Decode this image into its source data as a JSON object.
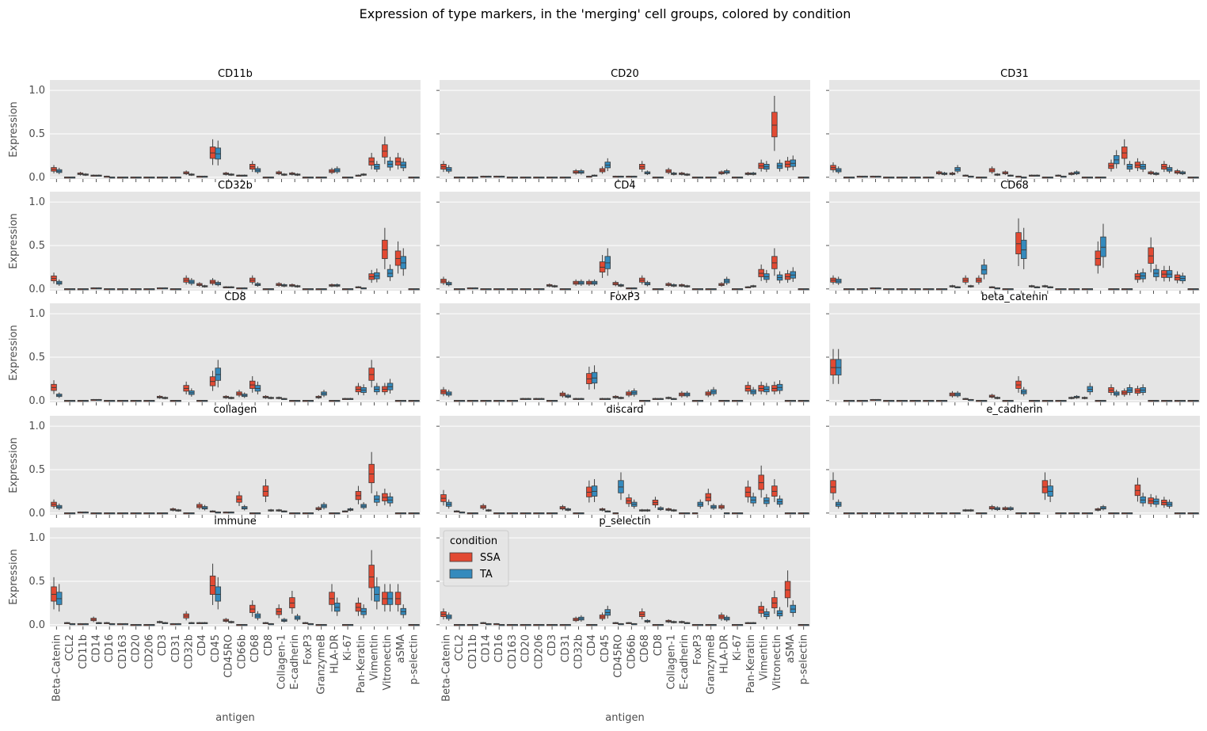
{
  "chart_data": {
    "type": "box",
    "title": "Expression of type markers, in the 'merging' cell groups, colored by condition",
    "xlabel": "antigen",
    "ylabel": "Expression",
    "ylim": [
      -0.02,
      1.12
    ],
    "yticks": [
      "0.0",
      "0.5",
      "1.0"
    ],
    "ytick_values": [
      0,
      0.5,
      1.0
    ],
    "grid": true,
    "categories": [
      "Beta-Catenin",
      "CCL2",
      "CD11b",
      "CD14",
      "CD16",
      "CD163",
      "CD20",
      "CD206",
      "CD3",
      "CD31",
      "CD32b",
      "CD4",
      "CD45",
      "CD45RO",
      "CD66b",
      "CD68",
      "CD8",
      "Collagen-1",
      "E-cadherin",
      "FoxP3",
      "GranzymeB",
      "HLA-DR",
      "Ki-67",
      "Pan-Keratin",
      "Vimentin",
      "Vitronectin",
      "aSMA",
      "p-selectin"
    ],
    "legend": {
      "title": "condition",
      "placement": "upper-left",
      "entries": [
        {
          "name": "SSA",
          "color": "#e24a33"
        },
        {
          "name": "TA",
          "color": "#348abd"
        }
      ]
    },
    "series_colors": {
      "SSA": "#e24a33",
      "TA": "#348abd"
    },
    "panels": [
      {
        "title": "CD11b",
        "medians": {
          "SSA": [
            0.09,
            0.0,
            0.04,
            0.02,
            0.01,
            0.0,
            0.0,
            0.0,
            0.0,
            0.0,
            0.05,
            0.01,
            0.28,
            0.04,
            0.02,
            0.12,
            0.0,
            0.05,
            0.04,
            0.0,
            0.0,
            0.07,
            0.0,
            0.02,
            0.18,
            0.3,
            0.18,
            0.0
          ],
          "TA": [
            0.07,
            0.0,
            0.03,
            0.02,
            0.0,
            0.0,
            0.0,
            0.0,
            0.0,
            0.0,
            0.03,
            0.01,
            0.27,
            0.03,
            0.02,
            0.08,
            0.0,
            0.03,
            0.03,
            0.0,
            0.0,
            0.08,
            0.0,
            0.03,
            0.12,
            0.15,
            0.14,
            0.0
          ]
        }
      },
      {
        "title": "CD20",
        "medians": {
          "SSA": [
            0.12,
            0.0,
            0.0,
            0.01,
            0.01,
            0.0,
            0.0,
            0.0,
            0.0,
            0.0,
            0.06,
            0.01,
            0.08,
            0.01,
            0.01,
            0.12,
            0.0,
            0.07,
            0.04,
            0.0,
            0.0,
            0.05,
            0.0,
            0.04,
            0.13,
            0.6,
            0.15,
            0.0
          ],
          "TA": [
            0.09,
            0.0,
            0.0,
            0.01,
            0.01,
            0.0,
            0.0,
            0.0,
            0.0,
            0.0,
            0.06,
            0.02,
            0.14,
            0.01,
            0.01,
            0.05,
            0.0,
            0.04,
            0.03,
            0.0,
            0.0,
            0.06,
            0.0,
            0.04,
            0.12,
            0.13,
            0.16,
            0.0
          ]
        }
      },
      {
        "title": "CD31",
        "medians": {
          "SSA": [
            0.11,
            0.0,
            0.01,
            0.01,
            0.0,
            0.0,
            0.0,
            0.0,
            0.05,
            0.04,
            0.02,
            0.0,
            0.08,
            0.05,
            0.01,
            0.02,
            0.0,
            0.02,
            0.04,
            0.0,
            0.0,
            0.13,
            0.28,
            0.14,
            0.05,
            0.12,
            0.06,
            0.0
          ],
          "TA": [
            0.08,
            0.0,
            0.01,
            0.01,
            0.0,
            0.0,
            0.0,
            0.0,
            0.04,
            0.09,
            0.01,
            0.0,
            0.03,
            0.02,
            0.0,
            0.02,
            0.0,
            0.01,
            0.05,
            0.0,
            0.0,
            0.2,
            0.12,
            0.12,
            0.04,
            0.09,
            0.05,
            0.0
          ]
        }
      },
      {
        "title": "CD32b",
        "medians": {
          "SSA": [
            0.12,
            0.0,
            0.0,
            0.01,
            0.0,
            0.0,
            0.0,
            0.0,
            0.01,
            0.0,
            0.1,
            0.05,
            0.08,
            0.02,
            0.01,
            0.1,
            0.0,
            0.05,
            0.04,
            0.0,
            0.0,
            0.04,
            0.0,
            0.02,
            0.14,
            0.45,
            0.35,
            0.0
          ],
          "TA": [
            0.07,
            0.0,
            0.0,
            0.01,
            0.0,
            0.0,
            0.0,
            0.0,
            0.01,
            0.0,
            0.08,
            0.03,
            0.06,
            0.02,
            0.01,
            0.05,
            0.0,
            0.04,
            0.03,
            0.0,
            0.0,
            0.04,
            0.0,
            0.01,
            0.15,
            0.18,
            0.3,
            0.0
          ]
        }
      },
      {
        "title": "CD4",
        "medians": {
          "SSA": [
            0.09,
            0.0,
            0.01,
            0.0,
            0.0,
            0.0,
            0.0,
            0.0,
            0.04,
            0.0,
            0.07,
            0.07,
            0.25,
            0.06,
            0.01,
            0.1,
            0.0,
            0.05,
            0.04,
            0.0,
            0.0,
            0.05,
            0.0,
            0.02,
            0.18,
            0.3,
            0.14,
            0.0
          ],
          "TA": [
            0.06,
            0.0,
            0.01,
            0.0,
            0.0,
            0.0,
            0.0,
            0.0,
            0.03,
            0.0,
            0.07,
            0.07,
            0.3,
            0.04,
            0.01,
            0.06,
            0.0,
            0.04,
            0.03,
            0.0,
            0.0,
            0.09,
            0.0,
            0.03,
            0.14,
            0.13,
            0.16,
            0.0
          ]
        }
      },
      {
        "title": "CD68",
        "medians": {
          "SSA": [
            0.1,
            0.0,
            0.0,
            0.01,
            0.0,
            0.0,
            0.0,
            0.0,
            0.0,
            0.03,
            0.1,
            0.1,
            0.02,
            0.0,
            0.52,
            0.03,
            0.03,
            0.0,
            0.0,
            0.0,
            0.35,
            0.0,
            0.0,
            0.14,
            0.38,
            0.17,
            0.13,
            0.0
          ],
          "TA": [
            0.09,
            0.0,
            0.0,
            0.01,
            0.0,
            0.0,
            0.0,
            0.0,
            0.0,
            0.02,
            0.03,
            0.22,
            0.01,
            0.0,
            0.45,
            0.02,
            0.02,
            0.0,
            0.0,
            0.0,
            0.48,
            0.0,
            0.0,
            0.15,
            0.18,
            0.17,
            0.12,
            0.0
          ]
        }
      },
      {
        "title": "CD8",
        "medians": {
          "SSA": [
            0.15,
            0.0,
            0.0,
            0.01,
            0.0,
            0.0,
            0.0,
            0.0,
            0.04,
            0.0,
            0.14,
            0.0,
            0.22,
            0.04,
            0.08,
            0.18,
            0.04,
            0.03,
            0.0,
            0.0,
            0.04,
            0.0,
            0.02,
            0.13,
            0.3,
            0.13,
            0.0,
            0.0
          ],
          "TA": [
            0.06,
            0.0,
            0.0,
            0.01,
            0.0,
            0.0,
            0.0,
            0.0,
            0.03,
            0.0,
            0.09,
            0.0,
            0.3,
            0.03,
            0.06,
            0.14,
            0.03,
            0.02,
            0.0,
            0.0,
            0.08,
            0.0,
            0.02,
            0.12,
            0.13,
            0.16,
            0.0,
            0.0
          ]
        }
      },
      {
        "title": "FoxP3",
        "medians": {
          "SSA": [
            0.1,
            0.0,
            0.0,
            0.0,
            0.0,
            0.0,
            0.02,
            0.02,
            0.0,
            0.07,
            0.02,
            0.25,
            0.02,
            0.04,
            0.08,
            0.0,
            0.02,
            0.03,
            0.07,
            0.0,
            0.08,
            0.0,
            0.0,
            0.14,
            0.14,
            0.14,
            0.0,
            0.0
          ],
          "TA": [
            0.08,
            0.0,
            0.0,
            0.0,
            0.0,
            0.0,
            0.02,
            0.02,
            0.0,
            0.05,
            0.02,
            0.26,
            0.02,
            0.03,
            0.09,
            0.0,
            0.02,
            0.02,
            0.07,
            0.0,
            0.1,
            0.0,
            0.0,
            0.1,
            0.13,
            0.15,
            0.0,
            0.0
          ]
        }
      },
      {
        "title": "beta_catenin",
        "medians": {
          "SSA": [
            0.38,
            0.0,
            0.0,
            0.01,
            0.0,
            0.0,
            0.0,
            0.0,
            0.0,
            0.07,
            0.02,
            0.0,
            0.05,
            0.0,
            0.18,
            0.0,
            0.0,
            0.0,
            0.03,
            0.03,
            0.0,
            0.12,
            0.09,
            0.11,
            0.0,
            0.0,
            0.0,
            0.0
          ],
          "TA": [
            0.38,
            0.0,
            0.0,
            0.01,
            0.0,
            0.0,
            0.0,
            0.0,
            0.0,
            0.07,
            0.01,
            0.0,
            0.03,
            0.0,
            0.1,
            0.0,
            0.0,
            0.0,
            0.04,
            0.13,
            0.0,
            0.08,
            0.12,
            0.12,
            0.0,
            0.0,
            0.0,
            0.0
          ]
        }
      },
      {
        "title": "collagen",
        "medians": {
          "SSA": [
            0.1,
            0.0,
            0.01,
            0.0,
            0.0,
            0.0,
            0.0,
            0.0,
            0.0,
            0.04,
            0.0,
            0.08,
            0.02,
            0.01,
            0.16,
            0.0,
            0.25,
            0.03,
            0.0,
            0.0,
            0.05,
            0.0,
            0.02,
            0.2,
            0.45,
            0.18,
            0.0,
            0.0
          ],
          "TA": [
            0.07,
            0.0,
            0.01,
            0.0,
            0.0,
            0.0,
            0.0,
            0.0,
            0.0,
            0.03,
            0.0,
            0.06,
            0.01,
            0.01,
            0.06,
            0.0,
            0.03,
            0.02,
            0.0,
            0.0,
            0.08,
            0.0,
            0.04,
            0.08,
            0.16,
            0.15,
            0.0,
            0.0
          ]
        }
      },
      {
        "title": "discard",
        "medians": {
          "SSA": [
            0.17,
            0.02,
            0.0,
            0.07,
            0.0,
            0.0,
            0.0,
            0.0,
            0.0,
            0.06,
            0.0,
            0.24,
            0.04,
            0.0,
            0.14,
            0.03,
            0.12,
            0.04,
            0.0,
            0.0,
            0.18,
            0.07,
            0.0,
            0.24,
            0.35,
            0.25,
            0.0,
            0.0
          ],
          "TA": [
            0.1,
            0.01,
            0.0,
            0.03,
            0.0,
            0.0,
            0.0,
            0.0,
            0.0,
            0.04,
            0.0,
            0.25,
            0.02,
            0.3,
            0.1,
            0.03,
            0.05,
            0.03,
            0.0,
            0.1,
            0.07,
            0.0,
            0.0,
            0.15,
            0.14,
            0.13,
            0.0,
            0.0
          ]
        }
      },
      {
        "title": "e_cadherin",
        "medians": {
          "SSA": [
            0.3,
            0.0,
            0.0,
            0.0,
            0.0,
            0.0,
            0.0,
            0.0,
            0.0,
            0.0,
            0.03,
            0.0,
            0.06,
            0.05,
            0.0,
            0.0,
            0.3,
            0.0,
            0.0,
            0.0,
            0.04,
            0.0,
            0.0,
            0.26,
            0.14,
            0.12,
            0.0,
            0.0
          ],
          "TA": [
            0.1,
            0.0,
            0.0,
            0.0,
            0.0,
            0.0,
            0.0,
            0.0,
            0.0,
            0.0,
            0.03,
            0.0,
            0.05,
            0.05,
            0.0,
            0.0,
            0.25,
            0.0,
            0.0,
            0.0,
            0.06,
            0.0,
            0.0,
            0.15,
            0.13,
            0.1,
            0.0,
            0.0
          ]
        }
      },
      {
        "title": "immune",
        "medians": {
          "SSA": [
            0.35,
            0.02,
            0.01,
            0.06,
            0.02,
            0.01,
            0.0,
            0.0,
            0.03,
            0.01,
            0.1,
            0.02,
            0.45,
            0.05,
            0.0,
            0.18,
            0.02,
            0.15,
            0.25,
            0.02,
            0.0,
            0.3,
            0.0,
            0.2,
            0.55,
            0.3,
            0.3,
            0.0
          ],
          "TA": [
            0.3,
            0.01,
            0.01,
            0.02,
            0.01,
            0.01,
            0.0,
            0.0,
            0.02,
            0.01,
            0.02,
            0.02,
            0.35,
            0.03,
            0.0,
            0.1,
            0.01,
            0.05,
            0.08,
            0.01,
            0.0,
            0.2,
            0.0,
            0.15,
            0.35,
            0.3,
            0.15,
            0.0
          ]
        }
      },
      {
        "title": "p_selectin",
        "medians": {
          "SSA": [
            0.12,
            0.0,
            0.0,
            0.02,
            0.01,
            0.0,
            0.0,
            0.0,
            0.0,
            0.0,
            0.06,
            0.0,
            0.09,
            0.02,
            0.02,
            0.12,
            0.0,
            0.04,
            0.03,
            0.0,
            0.0,
            0.09,
            0.0,
            0.02,
            0.17,
            0.25,
            0.4,
            0.0
          ],
          "TA": [
            0.09,
            0.0,
            0.0,
            0.01,
            0.0,
            0.0,
            0.0,
            0.0,
            0.0,
            0.0,
            0.07,
            0.0,
            0.14,
            0.01,
            0.01,
            0.04,
            0.0,
            0.03,
            0.02,
            0.0,
            0.0,
            0.07,
            0.0,
            0.02,
            0.12,
            0.13,
            0.18,
            0.0
          ]
        }
      }
    ]
  }
}
